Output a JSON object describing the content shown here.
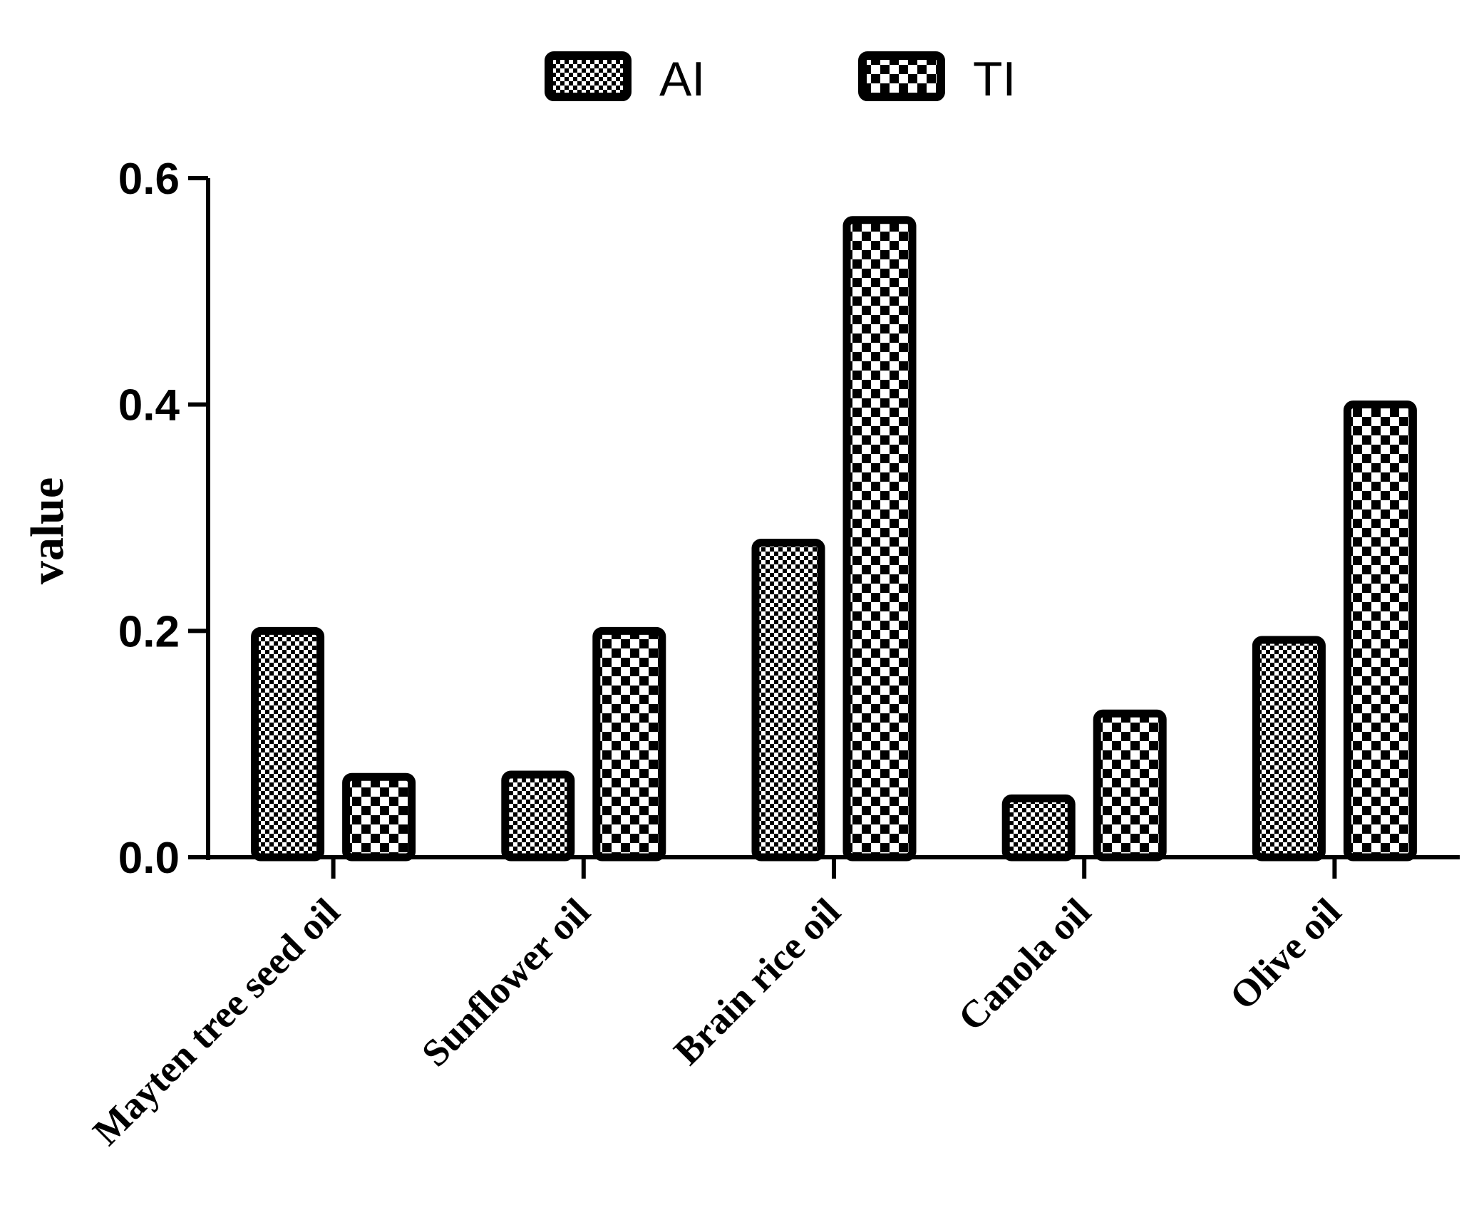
{
  "chart_data": {
    "type": "bar",
    "title": "",
    "xlabel": "",
    "ylabel": "value",
    "ylim": [
      0,
      0.6
    ],
    "yticks": [
      "0.0",
      "0.2",
      "0.4",
      "0.6"
    ],
    "categories": [
      "Mayten tree seed oil",
      "Sunflower oil",
      "Brain rice oil",
      "Canola oil",
      "Olive oil"
    ],
    "series": [
      {
        "name": "AI",
        "values": [
          0.2,
          0.073,
          0.278,
          0.052,
          0.192
        ],
        "pattern": "fine-checker"
      },
      {
        "name": "TI",
        "values": [
          0.071,
          0.2,
          0.563,
          0.127,
          0.4
        ],
        "pattern": "coarse-checker"
      }
    ],
    "legend_position": "top-center",
    "grid": false,
    "colors": {
      "bar_outline": "#000000",
      "bar_fill": "#ffffff",
      "axis": "#000000"
    }
  }
}
